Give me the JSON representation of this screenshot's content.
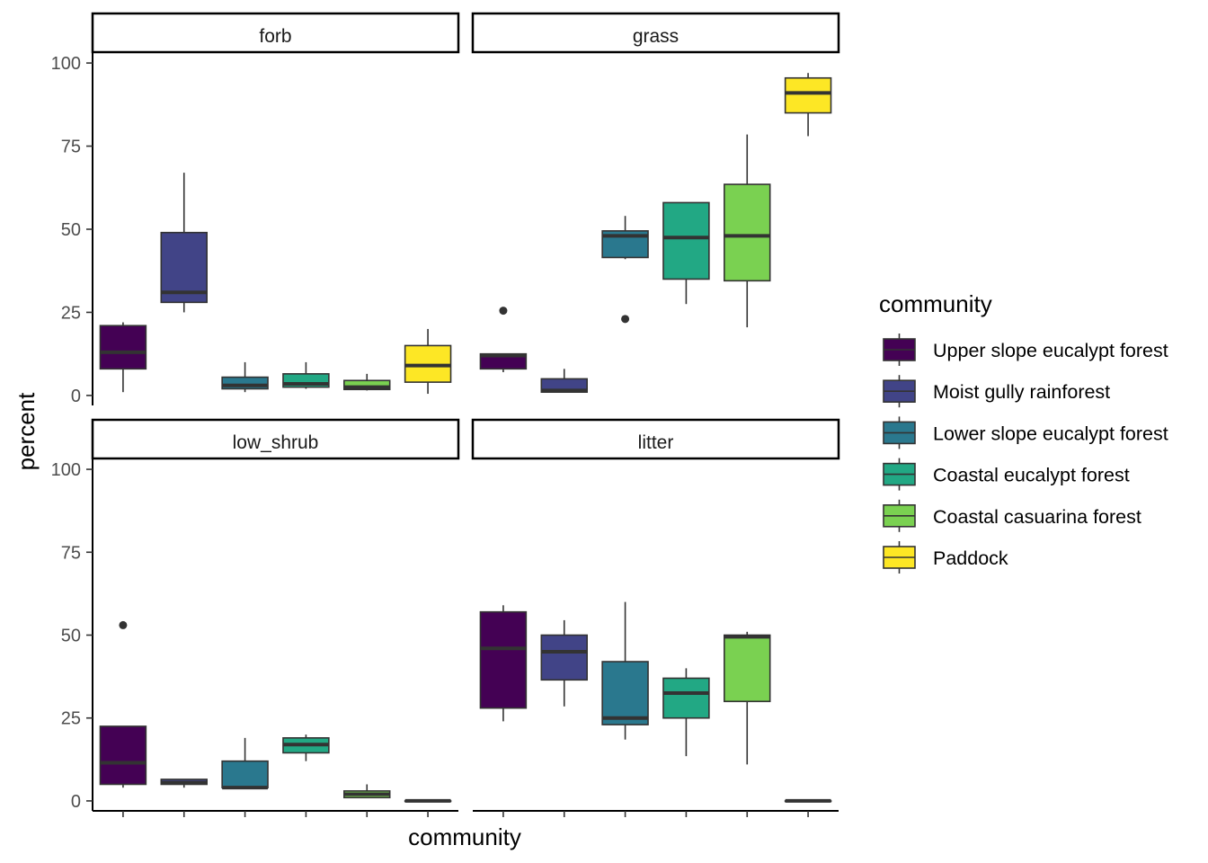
{
  "chart_data": {
    "type": "boxplot",
    "xlabel": "community",
    "ylabel": "percent",
    "ylim": [
      -3,
      103
    ],
    "yticks": [
      0,
      25,
      50,
      75,
      100
    ],
    "grid": false,
    "legend_position": "right",
    "legend_title": "community",
    "categories": [
      {
        "name": "Upper slope eucalypt forest",
        "color": "#440154"
      },
      {
        "name": "Moist gully rainforest",
        "color": "#414487"
      },
      {
        "name": "Lower slope eucalypt forest",
        "color": "#2A788E"
      },
      {
        "name": "Coastal eucalypt forest",
        "color": "#22A884"
      },
      {
        "name": "Coastal casuarina forest",
        "color": "#7AD151"
      },
      {
        "name": "Paddock",
        "color": "#FDE725"
      }
    ],
    "facets": [
      {
        "label": "forb",
        "boxes": [
          {
            "min": 1,
            "q1": 8,
            "median": 13,
            "q3": 21,
            "max": 22,
            "outliers": []
          },
          {
            "min": 25,
            "q1": 28,
            "median": 31,
            "q3": 49,
            "max": 67,
            "outliers": []
          },
          {
            "min": 1,
            "q1": 2,
            "median": 3,
            "q3": 5.5,
            "max": 10,
            "outliers": []
          },
          {
            "min": 2,
            "q1": 2.5,
            "median": 3.5,
            "q3": 6.5,
            "max": 10,
            "outliers": []
          },
          {
            "min": 1.5,
            "q1": 1.8,
            "median": 2.5,
            "q3": 4.5,
            "max": 6.5,
            "outliers": []
          },
          {
            "min": 0.5,
            "q1": 4,
            "median": 9,
            "q3": 15,
            "max": 20,
            "outliers": []
          }
        ]
      },
      {
        "label": "grass",
        "boxes": [
          {
            "min": 7,
            "q1": 8,
            "median": 12,
            "q3": 12.5,
            "max": 12.5,
            "outliers": [
              25.5
            ]
          },
          {
            "min": 1,
            "q1": 1,
            "median": 1.5,
            "q3": 5,
            "max": 8,
            "outliers": []
          },
          {
            "min": 41,
            "q1": 41.5,
            "median": 48,
            "q3": 49.5,
            "max": 54,
            "outliers": [
              23
            ]
          },
          {
            "min": 27.5,
            "q1": 35,
            "median": 47.5,
            "q3": 58,
            "max": 58,
            "outliers": []
          },
          {
            "min": 20.5,
            "q1": 34.5,
            "median": 48,
            "q3": 63.5,
            "max": 78.5,
            "outliers": []
          },
          {
            "min": 78,
            "q1": 85,
            "median": 91,
            "q3": 95.5,
            "max": 97,
            "outliers": []
          }
        ]
      },
      {
        "label": "low_shrub",
        "boxes": [
          {
            "min": 4,
            "q1": 5,
            "median": 11.5,
            "q3": 22.5,
            "max": 22.5,
            "outliers": [
              53
            ]
          },
          {
            "min": 4,
            "q1": 5,
            "median": 5.5,
            "q3": 6.5,
            "max": 6.5,
            "outliers": []
          },
          {
            "min": 4,
            "q1": 4,
            "median": 4,
            "q3": 12,
            "max": 19,
            "outliers": []
          },
          {
            "min": 12,
            "q1": 14.5,
            "median": 17,
            "q3": 19,
            "max": 20,
            "outliers": []
          },
          {
            "min": 1,
            "q1": 1,
            "median": 2,
            "q3": 3,
            "max": 5,
            "outliers": []
          },
          {
            "min": 0,
            "q1": 0,
            "median": 0,
            "q3": 0,
            "max": 0,
            "outliers": []
          }
        ]
      },
      {
        "label": "litter",
        "boxes": [
          {
            "min": 24,
            "q1": 28,
            "median": 46,
            "q3": 57,
            "max": 59,
            "outliers": []
          },
          {
            "min": 28.5,
            "q1": 36.5,
            "median": 45,
            "q3": 50,
            "max": 54.5,
            "outliers": []
          },
          {
            "min": 18.5,
            "q1": 23,
            "median": 25,
            "q3": 42,
            "max": 60,
            "outliers": []
          },
          {
            "min": 13.5,
            "q1": 25,
            "median": 32.5,
            "q3": 37,
            "max": 40,
            "outliers": []
          },
          {
            "min": 11,
            "q1": 30,
            "median": 49.5,
            "q3": 50,
            "max": 51,
            "outliers": []
          },
          {
            "min": 0,
            "q1": 0,
            "median": 0,
            "q3": 0,
            "max": 0,
            "outliers": []
          }
        ]
      }
    ]
  }
}
